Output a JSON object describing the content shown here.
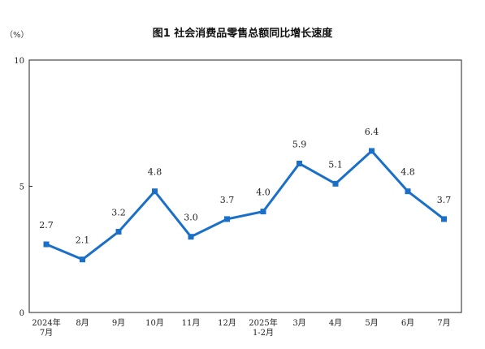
{
  "title": "图1  社会消费品零售总额同比增长速度",
  "unit": "（%）",
  "colors": {
    "line": "#1a6fc9",
    "axis": "#222222"
  },
  "chart_data": {
    "type": "line",
    "title": "图1  社会消费品零售总额同比增长速度",
    "ylabel": "（%）",
    "ylim": [
      0,
      10
    ],
    "yticks": [
      0,
      5,
      10
    ],
    "categories": [
      [
        "2024年",
        "7月"
      ],
      [
        "8月"
      ],
      [
        "9月"
      ],
      [
        "10月"
      ],
      [
        "11月"
      ],
      [
        "12月"
      ],
      [
        "2025年",
        "1-2月"
      ],
      [
        "3月"
      ],
      [
        "4月"
      ],
      [
        "5月"
      ],
      [
        "6月"
      ],
      [
        "7月"
      ]
    ],
    "values": [
      2.7,
      2.1,
      3.2,
      4.8,
      3.0,
      3.7,
      4.0,
      5.9,
      5.1,
      6.4,
      4.8,
      3.7
    ],
    "value_labels": [
      "2.7",
      "2.1",
      "3.2",
      "4.8",
      "3.0",
      "3.7",
      "4.0",
      "5.9",
      "5.1",
      "6.4",
      "4.8",
      "3.7"
    ],
    "grid": false,
    "legend": "none"
  }
}
